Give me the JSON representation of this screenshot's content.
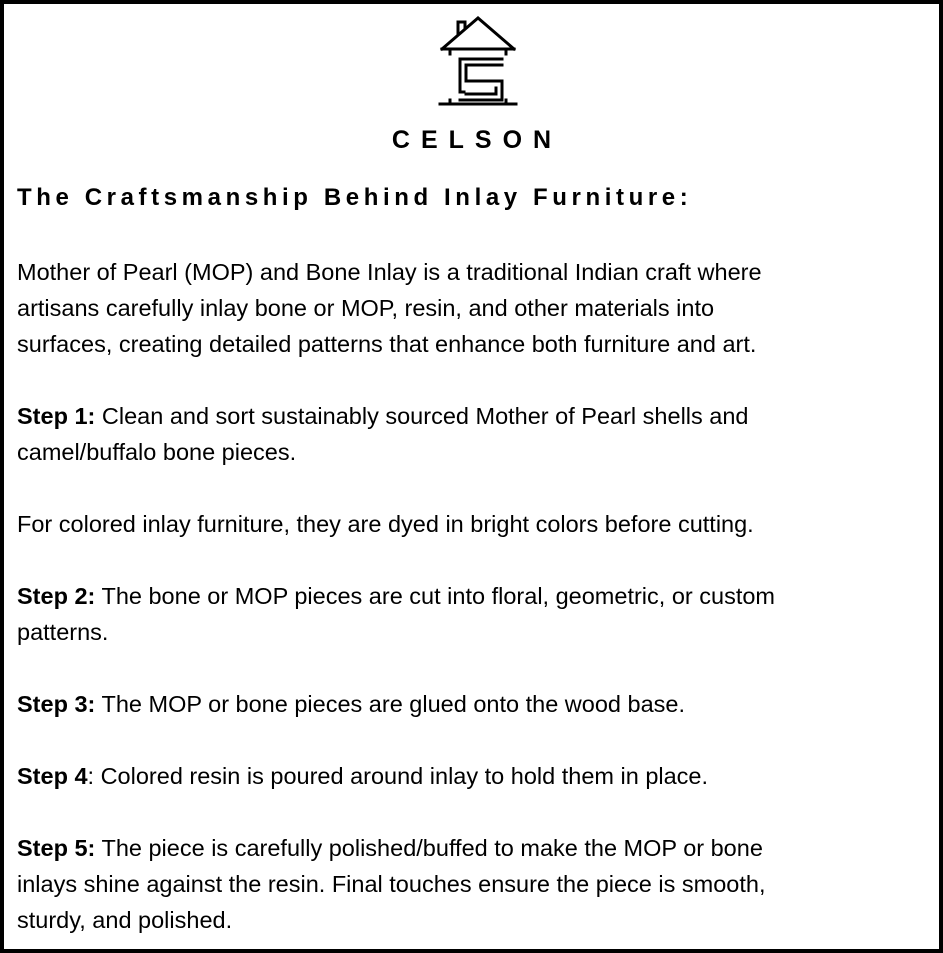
{
  "brand": {
    "name": "CELSON",
    "logo_icon": "house-s-logo"
  },
  "title": "The Craftsmanship Behind Inlay Furniture:",
  "intro": {
    "lines": [
      "Mother of Pearl (MOP) and Bone Inlay is a traditional Indian craft where",
      "artisans carefully inlay bone or MOP, resin, and other materials into",
      "surfaces, creating detailed patterns that enhance both furniture and art."
    ]
  },
  "steps": [
    {
      "label": "Step 1:",
      "lines": [
        " Clean and sort sustainably sourced Mother of Pearl shells and",
        "camel/buffalo bone pieces."
      ]
    },
    {
      "label": "",
      "lines": [
        "For colored inlay furniture, they are dyed in bright colors before cutting."
      ]
    },
    {
      "label": "Step 2:",
      "lines": [
        " The bone or MOP pieces are cut into floral, geometric, or custom",
        "patterns."
      ]
    },
    {
      "label": "Step 3:",
      "lines": [
        " The MOP or bone pieces are glued onto the wood base."
      ]
    },
    {
      "label": "Step 4",
      "lines": [
        ": Colored resin is poured around inlay to hold them in place."
      ]
    },
    {
      "label": "Step 5:",
      "lines": [
        " The piece is carefully polished/buffed to make the MOP or bone",
        "inlays shine against the resin. Final touches ensure the piece is smooth,",
        "sturdy, and polished."
      ]
    }
  ]
}
